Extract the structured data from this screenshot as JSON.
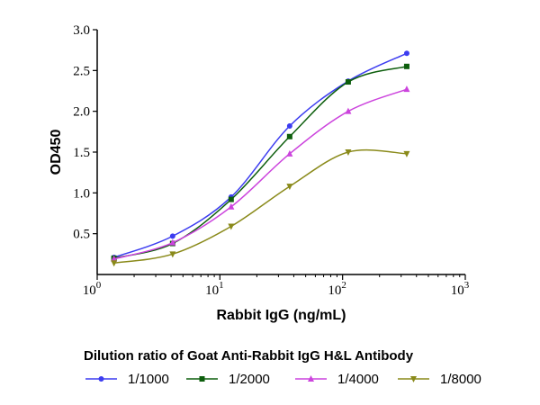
{
  "chart_data": {
    "type": "line",
    "title": "",
    "xlabel": "Rabbit IgG (ng/mL)",
    "ylabel": "OD450",
    "xscale": "log",
    "xlim": [
      1,
      1000
    ],
    "ylim": [
      0,
      3.0
    ],
    "xticks": [
      {
        "value": 1,
        "base": "10",
        "exp": "0"
      },
      {
        "value": 10,
        "base": "10",
        "exp": "1"
      },
      {
        "value": 100,
        "base": "10",
        "exp": "2"
      },
      {
        "value": 1000,
        "base": "10",
        "exp": "3"
      }
    ],
    "yticks": [
      "0.5",
      "1.0",
      "1.5",
      "2.0",
      "2.5",
      "3.0"
    ],
    "grid": false,
    "legend_title": "Dilution ratio of Goat Anti-Rabbit IgG H&L Antibody",
    "legend_position": "bottom",
    "x": [
      1.37,
      4.12,
      12.35,
      37.04,
      111.11,
      333.33
    ],
    "series": [
      {
        "name": "1/1000",
        "color": "#3c3cf0",
        "marker": "circle",
        "values": [
          0.21,
          0.47,
          0.95,
          1.82,
          2.37,
          2.71
        ]
      },
      {
        "name": "1/2000",
        "color": "#0d5e0d",
        "marker": "square",
        "values": [
          0.2,
          0.38,
          0.92,
          1.69,
          2.36,
          2.55
        ]
      },
      {
        "name": "1/4000",
        "color": "#cc44dd",
        "marker": "triangle-up",
        "values": [
          0.19,
          0.39,
          0.83,
          1.48,
          2.0,
          2.27
        ]
      },
      {
        "name": "1/8000",
        "color": "#8a8a1a",
        "marker": "triangle-down",
        "values": [
          0.14,
          0.25,
          0.59,
          1.08,
          1.5,
          1.48
        ]
      }
    ]
  }
}
